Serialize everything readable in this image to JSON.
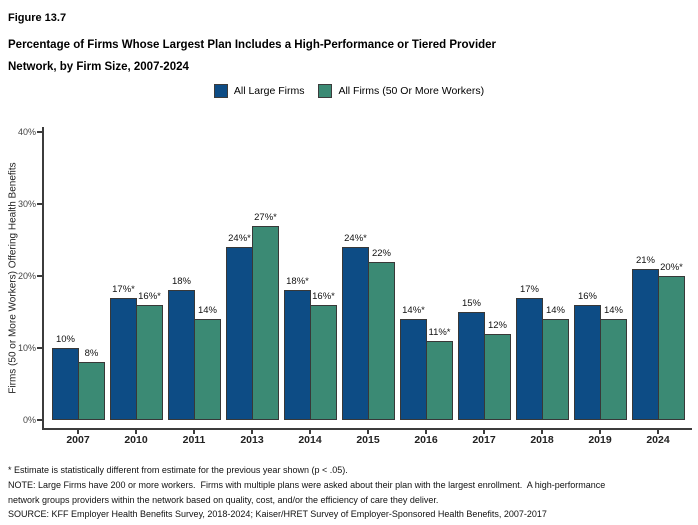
{
  "figure": {
    "label": "Figure 13.7",
    "title_lines": [
      "Percentage of Firms Whose Largest Plan Includes a High-Performance or Tiered Provider",
      "Network, by Firm Size, 2007-2024"
    ]
  },
  "legend": {
    "items": [
      {
        "label": "All Large Firms",
        "color": "#0d4c85"
      },
      {
        "label": "All Firms (50 Or More Workers)",
        "color": "#3b8a74"
      }
    ]
  },
  "chart_data": {
    "type": "bar",
    "title": "Percentage of Firms Whose Largest Plan Includes a High-Performance or Tiered Provider Network, by Firm Size, 2007-2024",
    "categories": [
      "2007",
      "2010",
      "2011",
      "2013",
      "2014",
      "2015",
      "2016",
      "2017",
      "2018",
      "2019",
      "2024"
    ],
    "series": [
      {
        "name": "All Large Firms",
        "color": "#0d4c85",
        "values": [
          10,
          17,
          18,
          24,
          18,
          24,
          14,
          15,
          17,
          16,
          21
        ],
        "labels": [
          "10%",
          "17%*",
          "18%",
          "24%*",
          "18%*",
          "24%*",
          "14%*",
          "15%",
          "17%",
          "16%",
          "21%"
        ]
      },
      {
        "name": "All Firms (50 Or More Workers)",
        "color": "#3b8a74",
        "values": [
          8,
          16,
          14,
          27,
          16,
          22,
          11,
          12,
          14,
          14,
          20
        ],
        "labels": [
          "8%",
          "16%*",
          "14%",
          "27%*",
          "16%*",
          "22%",
          "11%*",
          "12%",
          "14%",
          "14%",
          "20%*"
        ]
      }
    ],
    "xlabel": "",
    "ylabel": "Firms (50 or More Workers) Offering Health Benefits",
    "yticks": [
      {
        "value": 0,
        "label": "0%"
      },
      {
        "value": 10,
        "label": "10%"
      },
      {
        "value": 20,
        "label": "20%"
      },
      {
        "value": 30,
        "label": "30%"
      },
      {
        "value": 40,
        "label": "40%"
      }
    ],
    "ylim": [
      0,
      42
    ],
    "grid": false,
    "legend_position": "top"
  },
  "footnotes": {
    "lines": [
      "* Estimate is statistically different from estimate for the previous year shown (p < .05).",
      "NOTE: Large Firms have 200 or more workers.  Firms with multiple plans were asked about their plan with the largest enrollment.  A high-performance",
      "network groups providers within the network based on quality, cost, and/or the efficiency of care they deliver.",
      "SOURCE: KFF Employer Health Benefits Survey, 2018-2024; Kaiser/HRET Survey of Employer-Sponsored Health Benefits, 2007-2017"
    ]
  },
  "colors": {
    "axis": "#3c3c3c",
    "bar_border": "#383838"
  }
}
